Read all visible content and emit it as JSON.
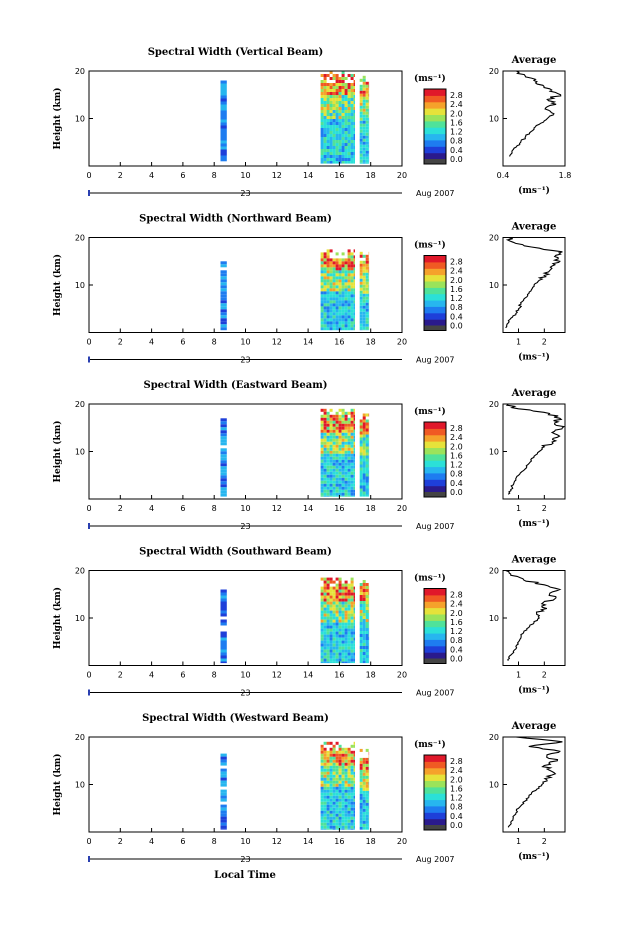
{
  "colors": {
    "colormap": [
      "#2a1a8c",
      "#1e3fd9",
      "#1e7cf0",
      "#27b6ef",
      "#2be0d8",
      "#4fe29a",
      "#9be35a",
      "#e6e23a",
      "#f5a22b",
      "#f05a23",
      "#e0182a"
    ],
    "zero_color": "#444444",
    "axis": "#000000"
  },
  "common": {
    "ylabel": "Height (km)",
    "time_ticks": [
      "0",
      "2",
      "4",
      "6",
      "8",
      "10",
      "12",
      "14",
      "16",
      "18",
      "20"
    ],
    "height_ticks": [
      "20",
      "10"
    ],
    "day_label": "23",
    "month_year": "Aug 2007",
    "cbar_unit": "(ms⁻¹)",
    "cbar_ticks": [
      "2.8",
      "2.4",
      "2.0",
      "1.6",
      "1.2",
      "0.8",
      "0.4",
      "0.0"
    ],
    "avg_title": "Average",
    "avg_xlabel": "(ms⁻¹)",
    "xlabel_bottom": "Local Time"
  },
  "chart_data": [
    {
      "type": "heatmap",
      "title": "Spectral Width (Vertical Beam)",
      "x_range_hours": [
        0,
        20
      ],
      "y_range_km": [
        0,
        20
      ],
      "data_blocks": [
        {
          "t_start": 8.4,
          "t_end": 8.8,
          "h_start": 1.0,
          "h_end": 18.0
        },
        {
          "t_start": 14.8,
          "t_end": 17.0,
          "h_start": 0.5,
          "h_end": 20.0
        },
        {
          "t_start": 17.3,
          "t_end": 17.9,
          "h_start": 0.5,
          "h_end": 19.0
        }
      ],
      "avg_profile": {
        "xticks": [
          "0.4",
          "1.8"
        ],
        "xlim": [
          0.4,
          1.8
        ],
        "profile": [
          [
            0.55,
            2
          ],
          [
            0.6,
            3
          ],
          [
            0.7,
            4
          ],
          [
            0.8,
            5
          ],
          [
            0.9,
            6
          ],
          [
            1.0,
            7
          ],
          [
            1.1,
            8
          ],
          [
            1.25,
            9
          ],
          [
            1.4,
            10
          ],
          [
            1.55,
            11
          ],
          [
            1.35,
            12
          ],
          [
            1.6,
            13
          ],
          [
            1.4,
            14
          ],
          [
            1.7,
            15
          ],
          [
            1.5,
            16
          ],
          [
            1.3,
            17
          ],
          [
            1.1,
            18
          ],
          [
            0.9,
            19
          ],
          [
            0.7,
            20
          ]
        ]
      }
    },
    {
      "type": "heatmap",
      "title": "Spectral Width (Northward Beam)",
      "x_range_hours": [
        0,
        20
      ],
      "y_range_km": [
        0,
        20
      ],
      "data_blocks": [
        {
          "t_start": 8.4,
          "t_end": 8.8,
          "h_start": 0.5,
          "h_end": 15.0
        },
        {
          "t_start": 14.8,
          "t_end": 17.0,
          "h_start": 0.5,
          "h_end": 17.5
        },
        {
          "t_start": 17.3,
          "t_end": 17.9,
          "h_start": 0.5,
          "h_end": 17.0
        }
      ],
      "avg_profile": {
        "xticks": [
          "1",
          "2"
        ],
        "xlim": [
          0.4,
          2.8
        ],
        "profile": [
          [
            0.5,
            1
          ],
          [
            0.6,
            2
          ],
          [
            0.7,
            3
          ],
          [
            0.9,
            4
          ],
          [
            1.0,
            5
          ],
          [
            1.1,
            6
          ],
          [
            1.2,
            7
          ],
          [
            1.35,
            8
          ],
          [
            1.5,
            9
          ],
          [
            1.6,
            10
          ],
          [
            1.8,
            11
          ],
          [
            2.0,
            12
          ],
          [
            2.2,
            13
          ],
          [
            2.3,
            14
          ],
          [
            2.6,
            15
          ],
          [
            2.4,
            16
          ],
          [
            2.7,
            17
          ],
          [
            1.5,
            18
          ],
          [
            0.8,
            19
          ],
          [
            0.6,
            20
          ]
        ]
      }
    },
    {
      "type": "heatmap",
      "title": "Spectral Width (Eastward Beam)",
      "x_range_hours": [
        0,
        20
      ],
      "y_range_km": [
        0,
        20
      ],
      "data_blocks": [
        {
          "t_start": 8.4,
          "t_end": 8.8,
          "h_start": 0.5,
          "h_end": 17.0
        },
        {
          "t_start": 14.8,
          "t_end": 17.0,
          "h_start": 0.5,
          "h_end": 19.0
        },
        {
          "t_start": 17.3,
          "t_end": 17.9,
          "h_start": 0.5,
          "h_end": 18.0
        }
      ],
      "avg_profile": {
        "xticks": [
          "1",
          "2"
        ],
        "xlim": [
          0.4,
          2.8
        ],
        "profile": [
          [
            0.6,
            1
          ],
          [
            0.7,
            2
          ],
          [
            0.8,
            3
          ],
          [
            0.9,
            4
          ],
          [
            1.0,
            5
          ],
          [
            1.2,
            6
          ],
          [
            1.3,
            7
          ],
          [
            1.5,
            8
          ],
          [
            1.6,
            9
          ],
          [
            1.8,
            10
          ],
          [
            2.0,
            11
          ],
          [
            2.3,
            12
          ],
          [
            2.5,
            13
          ],
          [
            2.3,
            14
          ],
          [
            2.7,
            15
          ],
          [
            2.4,
            16
          ],
          [
            2.6,
            17
          ],
          [
            2.2,
            18
          ],
          [
            1.0,
            19
          ],
          [
            0.6,
            20
          ]
        ]
      }
    },
    {
      "type": "heatmap",
      "title": "Spectral Width (Southward Beam)",
      "x_range_hours": [
        0,
        20
      ],
      "y_range_km": [
        0,
        20
      ],
      "data_blocks": [
        {
          "t_start": 8.4,
          "t_end": 8.8,
          "h_start": 0.5,
          "h_end": 16.0
        },
        {
          "t_start": 14.8,
          "t_end": 17.0,
          "h_start": 0.5,
          "h_end": 18.5
        },
        {
          "t_start": 17.3,
          "t_end": 17.9,
          "h_start": 0.5,
          "h_end": 18.0
        }
      ],
      "avg_profile": {
        "xticks": [
          "1",
          "2"
        ],
        "xlim": [
          0.4,
          2.8
        ],
        "profile": [
          [
            0.6,
            1
          ],
          [
            0.65,
            2
          ],
          [
            0.8,
            3
          ],
          [
            0.9,
            4
          ],
          [
            1.0,
            5
          ],
          [
            1.1,
            6
          ],
          [
            1.2,
            7
          ],
          [
            1.4,
            8
          ],
          [
            1.6,
            9
          ],
          [
            1.8,
            10
          ],
          [
            1.7,
            11
          ],
          [
            2.1,
            12
          ],
          [
            1.9,
            13
          ],
          [
            2.4,
            14
          ],
          [
            2.2,
            15
          ],
          [
            2.6,
            16
          ],
          [
            2.0,
            17
          ],
          [
            1.2,
            18
          ],
          [
            0.7,
            19
          ],
          [
            0.5,
            20
          ]
        ]
      }
    },
    {
      "type": "heatmap",
      "title": "Spectral Width (Westward Beam)",
      "x_range_hours": [
        0,
        20
      ],
      "y_range_km": [
        0,
        20
      ],
      "data_blocks": [
        {
          "t_start": 8.4,
          "t_end": 8.8,
          "h_start": 0.5,
          "h_end": 16.5
        },
        {
          "t_start": 14.8,
          "t_end": 17.0,
          "h_start": 0.5,
          "h_end": 19.0
        },
        {
          "t_start": 17.3,
          "t_end": 17.9,
          "h_start": 0.5,
          "h_end": 17.5
        }
      ],
      "avg_profile": {
        "xticks": [
          "1",
          "2"
        ],
        "xlim": [
          0.4,
          2.8
        ],
        "profile": [
          [
            0.6,
            1
          ],
          [
            0.7,
            2
          ],
          [
            0.8,
            3
          ],
          [
            0.9,
            4
          ],
          [
            1.0,
            5
          ],
          [
            1.2,
            6
          ],
          [
            1.3,
            7
          ],
          [
            1.5,
            8
          ],
          [
            1.7,
            9
          ],
          [
            1.9,
            10
          ],
          [
            2.1,
            11
          ],
          [
            2.3,
            12
          ],
          [
            2.2,
            13
          ],
          [
            2.0,
            14
          ],
          [
            2.5,
            15
          ],
          [
            2.1,
            16
          ],
          [
            2.6,
            17
          ],
          [
            1.4,
            18
          ],
          [
            2.7,
            19
          ],
          [
            0.9,
            20
          ]
        ]
      }
    }
  ]
}
